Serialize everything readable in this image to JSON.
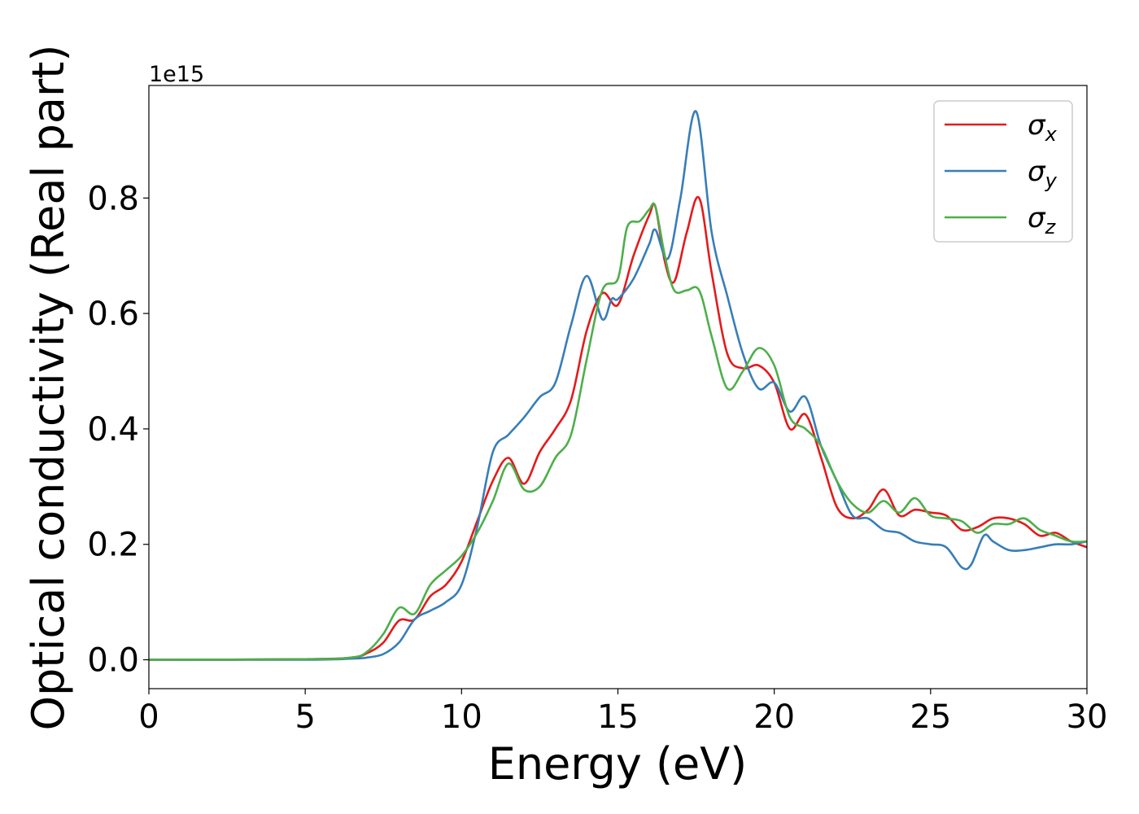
{
  "chart_data": {
    "type": "line",
    "title": "",
    "xlabel": "Energy (eV)",
    "ylabel": "Optical conductivity (Real part)",
    "offset_text": "1e15",
    "xlim": [
      0,
      30
    ],
    "ylim": [
      -0.05,
      0.995
    ],
    "x_ticks": [
      0,
      5,
      10,
      15,
      20,
      25,
      30
    ],
    "x_tick_labels": [
      "0",
      "5",
      "10",
      "15",
      "20",
      "25",
      "30"
    ],
    "y_ticks": [
      0.0,
      0.2,
      0.4,
      0.6,
      0.8
    ],
    "y_tick_labels": [
      "0.0",
      "0.2",
      "0.4",
      "0.6",
      "0.8"
    ],
    "grid": false,
    "legend_position": "top-right",
    "series": [
      {
        "name": "σx",
        "symbol": "σ",
        "subscript": "x",
        "color": "#e41a1c",
        "points": [
          [
            0,
            0
          ],
          [
            5,
            0.001
          ],
          [
            6.5,
            0.004
          ],
          [
            7,
            0.012
          ],
          [
            7.5,
            0.03
          ],
          [
            8,
            0.068
          ],
          [
            8.5,
            0.07
          ],
          [
            9,
            0.11
          ],
          [
            9.5,
            0.13
          ],
          [
            10,
            0.17
          ],
          [
            10.5,
            0.24
          ],
          [
            11,
            0.31
          ],
          [
            11.5,
            0.35
          ],
          [
            12,
            0.305
          ],
          [
            12.5,
            0.36
          ],
          [
            13,
            0.4
          ],
          [
            13.5,
            0.45
          ],
          [
            14,
            0.57
          ],
          [
            14.5,
            0.635
          ],
          [
            15,
            0.615
          ],
          [
            15.5,
            0.7
          ],
          [
            16,
            0.77
          ],
          [
            16.2,
            0.785
          ],
          [
            16.5,
            0.69
          ],
          [
            16.8,
            0.655
          ],
          [
            17.2,
            0.74
          ],
          [
            17.6,
            0.8
          ],
          [
            18,
            0.67
          ],
          [
            18.5,
            0.53
          ],
          [
            19,
            0.505
          ],
          [
            19.5,
            0.51
          ],
          [
            20,
            0.48
          ],
          [
            20.5,
            0.4
          ],
          [
            21,
            0.425
          ],
          [
            21.5,
            0.35
          ],
          [
            22,
            0.265
          ],
          [
            22.5,
            0.245
          ],
          [
            23,
            0.26
          ],
          [
            23.5,
            0.295
          ],
          [
            24,
            0.25
          ],
          [
            24.5,
            0.26
          ],
          [
            25,
            0.255
          ],
          [
            25.5,
            0.25
          ],
          [
            26,
            0.225
          ],
          [
            26.5,
            0.23
          ],
          [
            27,
            0.245
          ],
          [
            27.5,
            0.245
          ],
          [
            28,
            0.235
          ],
          [
            28.5,
            0.215
          ],
          [
            29,
            0.22
          ],
          [
            29.5,
            0.205
          ],
          [
            30,
            0.195
          ]
        ]
      },
      {
        "name": "σy",
        "symbol": "σ",
        "subscript": "y",
        "color": "#377eb8",
        "points": [
          [
            0,
            0
          ],
          [
            5,
            0.0
          ],
          [
            6.5,
            0.002
          ],
          [
            7,
            0.004
          ],
          [
            7.5,
            0.01
          ],
          [
            8,
            0.03
          ],
          [
            8.5,
            0.07
          ],
          [
            9,
            0.085
          ],
          [
            9.5,
            0.1
          ],
          [
            10,
            0.13
          ],
          [
            10.5,
            0.23
          ],
          [
            11,
            0.36
          ],
          [
            11.5,
            0.39
          ],
          [
            12,
            0.42
          ],
          [
            12.5,
            0.455
          ],
          [
            13,
            0.48
          ],
          [
            13.5,
            0.58
          ],
          [
            14,
            0.665
          ],
          [
            14.5,
            0.59
          ],
          [
            14.8,
            0.625
          ],
          [
            15,
            0.625
          ],
          [
            15.5,
            0.66
          ],
          [
            16,
            0.72
          ],
          [
            16.2,
            0.745
          ],
          [
            16.6,
            0.695
          ],
          [
            17,
            0.8
          ],
          [
            17.5,
            0.95
          ],
          [
            18,
            0.74
          ],
          [
            18.5,
            0.63
          ],
          [
            19,
            0.53
          ],
          [
            19.5,
            0.47
          ],
          [
            20,
            0.48
          ],
          [
            20.5,
            0.43
          ],
          [
            21,
            0.455
          ],
          [
            21.5,
            0.37
          ],
          [
            22,
            0.31
          ],
          [
            22.5,
            0.25
          ],
          [
            23,
            0.245
          ],
          [
            23.5,
            0.225
          ],
          [
            24,
            0.22
          ],
          [
            24.5,
            0.205
          ],
          [
            25,
            0.2
          ],
          [
            25.5,
            0.195
          ],
          [
            26,
            0.16
          ],
          [
            26.3,
            0.165
          ],
          [
            26.7,
            0.215
          ],
          [
            27,
            0.205
          ],
          [
            27.5,
            0.19
          ],
          [
            28,
            0.19
          ],
          [
            28.5,
            0.195
          ],
          [
            29,
            0.2
          ],
          [
            29.5,
            0.2
          ],
          [
            30,
            0.205
          ]
        ]
      },
      {
        "name": "σz",
        "symbol": "σ",
        "subscript": "z",
        "color": "#4daf4a",
        "points": [
          [
            0,
            0
          ],
          [
            5,
            0.001
          ],
          [
            6.5,
            0.004
          ],
          [
            7,
            0.015
          ],
          [
            7.5,
            0.045
          ],
          [
            8,
            0.09
          ],
          [
            8.5,
            0.08
          ],
          [
            9,
            0.13
          ],
          [
            9.5,
            0.155
          ],
          [
            10,
            0.18
          ],
          [
            10.5,
            0.22
          ],
          [
            11,
            0.275
          ],
          [
            11.5,
            0.34
          ],
          [
            12,
            0.295
          ],
          [
            12.5,
            0.3
          ],
          [
            13,
            0.35
          ],
          [
            13.5,
            0.39
          ],
          [
            14,
            0.52
          ],
          [
            14.5,
            0.64
          ],
          [
            15,
            0.66
          ],
          [
            15.3,
            0.75
          ],
          [
            15.7,
            0.76
          ],
          [
            16,
            0.78
          ],
          [
            16.2,
            0.785
          ],
          [
            16.5,
            0.7
          ],
          [
            16.8,
            0.64
          ],
          [
            17.2,
            0.64
          ],
          [
            17.6,
            0.64
          ],
          [
            18,
            0.56
          ],
          [
            18.5,
            0.47
          ],
          [
            19,
            0.5
          ],
          [
            19.5,
            0.54
          ],
          [
            20,
            0.51
          ],
          [
            20.5,
            0.42
          ],
          [
            21,
            0.4
          ],
          [
            21.5,
            0.37
          ],
          [
            22,
            0.31
          ],
          [
            22.5,
            0.27
          ],
          [
            23,
            0.255
          ],
          [
            23.5,
            0.275
          ],
          [
            24,
            0.255
          ],
          [
            24.5,
            0.28
          ],
          [
            25,
            0.25
          ],
          [
            25.5,
            0.245
          ],
          [
            26,
            0.24
          ],
          [
            26.5,
            0.22
          ],
          [
            27,
            0.235
          ],
          [
            27.5,
            0.235
          ],
          [
            28,
            0.245
          ],
          [
            28.5,
            0.225
          ],
          [
            29,
            0.215
          ],
          [
            29.5,
            0.205
          ],
          [
            30,
            0.205
          ]
        ]
      }
    ]
  }
}
